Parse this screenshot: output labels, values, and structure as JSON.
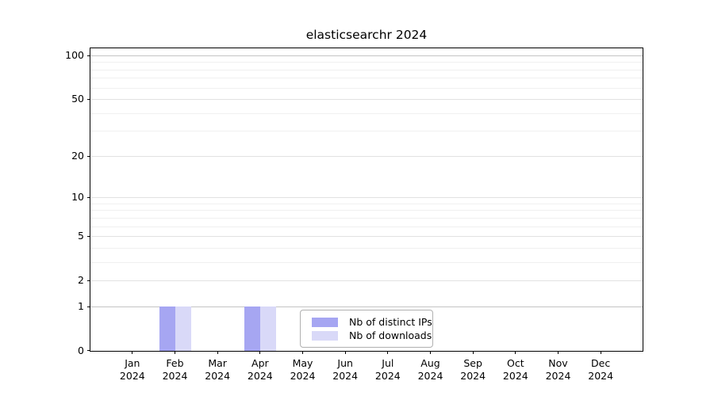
{
  "chart_data": {
    "type": "bar",
    "title": "elasticsearchr 2024",
    "months": [
      {
        "month": "Jan",
        "year": "2024"
      },
      {
        "month": "Feb",
        "year": "2024"
      },
      {
        "month": "Mar",
        "year": "2024"
      },
      {
        "month": "Apr",
        "year": "2024"
      },
      {
        "month": "May",
        "year": "2024"
      },
      {
        "month": "Jun",
        "year": "2024"
      },
      {
        "month": "Jul",
        "year": "2024"
      },
      {
        "month": "Aug",
        "year": "2024"
      },
      {
        "month": "Sep",
        "year": "2024"
      },
      {
        "month": "Oct",
        "year": "2024"
      },
      {
        "month": "Nov",
        "year": "2024"
      },
      {
        "month": "Dec",
        "year": "2024"
      }
    ],
    "series": [
      {
        "name": "Nb of distinct IPs",
        "color": "#a6a6f2",
        "values": [
          0,
          1,
          0,
          1,
          0,
          0,
          0,
          0,
          0,
          0,
          0,
          0
        ]
      },
      {
        "name": "Nb of downloads",
        "color": "#d9d9f8",
        "values": [
          0,
          1,
          0,
          1,
          0,
          0,
          0,
          0,
          0,
          0,
          0,
          0
        ]
      }
    ],
    "y_axis": {
      "scale": "log1p",
      "min": 0,
      "top_labeled_value": 100,
      "labeled_ticks": [
        0,
        1,
        2,
        5,
        10,
        20,
        50,
        100
      ],
      "minor_gridlines": [
        3,
        4,
        6,
        7,
        8,
        9,
        30,
        40,
        60,
        70,
        80,
        90
      ]
    },
    "grid": {
      "horizontal": true
    },
    "legend": {
      "position": "inside-bottom-center"
    }
  }
}
